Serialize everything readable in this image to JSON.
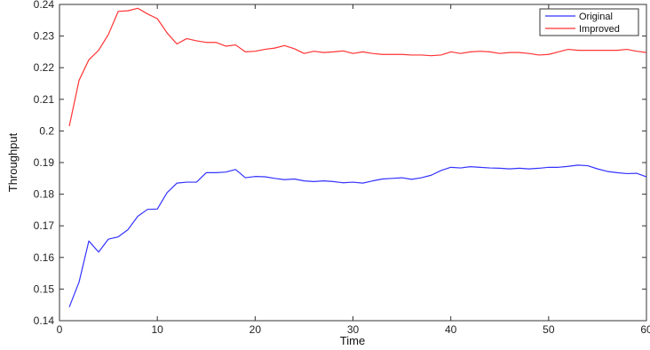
{
  "chart_data": {
    "type": "line",
    "title": "",
    "xlabel": "Time",
    "ylabel": "Throughput",
    "xlim": [
      0,
      60
    ],
    "ylim": [
      0.14,
      0.24
    ],
    "xticks": [
      0,
      10,
      20,
      30,
      40,
      50,
      60
    ],
    "yticks": [
      0.14,
      0.15,
      0.16,
      0.17,
      0.18,
      0.19,
      0.2,
      0.21,
      0.22,
      0.23,
      0.24
    ],
    "grid": false,
    "legend_position": "top-right",
    "x": [
      1,
      2,
      3,
      4,
      5,
      6,
      7,
      8,
      9,
      10,
      11,
      12,
      13,
      14,
      15,
      16,
      17,
      18,
      19,
      20,
      21,
      22,
      23,
      24,
      25,
      26,
      27,
      28,
      29,
      30,
      31,
      32,
      33,
      34,
      35,
      36,
      37,
      38,
      39,
      40,
      41,
      42,
      43,
      44,
      45,
      46,
      47,
      48,
      49,
      50,
      51,
      52,
      53,
      54,
      55,
      56,
      57,
      58,
      59,
      60
    ],
    "series": [
      {
        "name": "Original",
        "color": "#3333ff",
        "values": [
          0.1443,
          0.1522,
          0.1652,
          0.1617,
          0.1658,
          0.1665,
          0.1688,
          0.173,
          0.1752,
          0.1753,
          0.1805,
          0.1835,
          0.1838,
          0.1838,
          0.1868,
          0.1868,
          0.187,
          0.1878,
          0.1852,
          0.1856,
          0.1855,
          0.185,
          0.1846,
          0.1848,
          0.1842,
          0.184,
          0.1842,
          0.184,
          0.1836,
          0.1838,
          0.1835,
          0.1842,
          0.1848,
          0.185,
          0.1852,
          0.1847,
          0.1852,
          0.186,
          0.1875,
          0.1885,
          0.1883,
          0.1887,
          0.1885,
          0.1883,
          0.1882,
          0.188,
          0.1882,
          0.188,
          0.1882,
          0.1885,
          0.1885,
          0.1888,
          0.1892,
          0.189,
          0.188,
          0.1872,
          0.1868,
          0.1865,
          0.1866,
          0.1855
        ]
      },
      {
        "name": "Improved",
        "color": "#ff3333",
        "values": [
          0.2015,
          0.216,
          0.2225,
          0.2255,
          0.2305,
          0.2378,
          0.238,
          0.2388,
          0.237,
          0.2355,
          0.231,
          0.2275,
          0.2292,
          0.2285,
          0.228,
          0.228,
          0.2268,
          0.2272,
          0.225,
          0.2252,
          0.2258,
          0.2262,
          0.227,
          0.226,
          0.2245,
          0.2252,
          0.2248,
          0.225,
          0.2253,
          0.2245,
          0.225,
          0.2245,
          0.2242,
          0.2242,
          0.2242,
          0.224,
          0.224,
          0.2238,
          0.224,
          0.225,
          0.2245,
          0.225,
          0.2252,
          0.225,
          0.2245,
          0.2248,
          0.2248,
          0.2245,
          0.224,
          0.2242,
          0.225,
          0.2258,
          0.2255,
          0.2255,
          0.2255,
          0.2255,
          0.2255,
          0.2258,
          0.2252,
          0.2248
        ]
      }
    ]
  }
}
